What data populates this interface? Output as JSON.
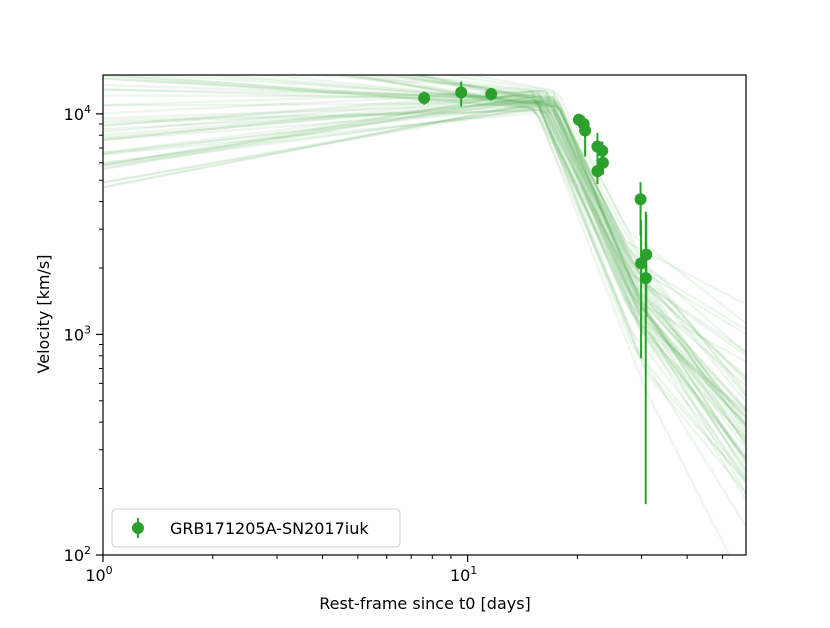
{
  "chart_data": {
    "type": "scatter",
    "xlabel": "Rest-frame since t0 [days]",
    "ylabel": "Velocity [km/s]",
    "xscale": "log",
    "yscale": "log",
    "xlim": [
      1,
      58
    ],
    "ylim": [
      100,
      15000
    ],
    "x_ticks": [
      {
        "value": 1,
        "base": "10",
        "exp": "0"
      },
      {
        "value": 10,
        "base": "10",
        "exp": "1"
      }
    ],
    "y_ticks": [
      {
        "value": 100,
        "base": "10",
        "exp": "2"
      },
      {
        "value": 1000,
        "base": "10",
        "exp": "3"
      },
      {
        "value": 10000,
        "base": "10",
        "exp": "4"
      }
    ],
    "grid": false,
    "legend": {
      "position": "lower-left"
    },
    "colors": {
      "series": "#2ca02c"
    },
    "series": [
      {
        "name": "GRB171205A-SN2017iuk",
        "marker": "circle",
        "errorbars": true,
        "points": [
          {
            "x": 7.6,
            "y": 11800,
            "ylo": 11000,
            "yhi": 12600
          },
          {
            "x": 9.6,
            "y": 12500,
            "ylo": 10800,
            "yhi": 14000
          },
          {
            "x": 11.6,
            "y": 12300,
            "ylo": 11500,
            "yhi": 13100
          },
          {
            "x": 20.2,
            "y": 9400,
            "ylo": 8800,
            "yhi": 10000
          },
          {
            "x": 20.8,
            "y": 9000,
            "ylo": 8200,
            "yhi": 9800
          },
          {
            "x": 21.0,
            "y": 8400,
            "ylo": 6400,
            "yhi": 9200
          },
          {
            "x": 22.7,
            "y": 7100,
            "ylo": 6300,
            "yhi": 8200
          },
          {
            "x": 22.7,
            "y": 5500,
            "ylo": 4800,
            "yhi": 6300
          },
          {
            "x": 23.4,
            "y": 6800,
            "ylo": 6100,
            "yhi": 7500
          },
          {
            "x": 23.5,
            "y": 6000,
            "ylo": 5300,
            "yhi": 6700
          },
          {
            "x": 29.8,
            "y": 4100,
            "ylo": 2800,
            "yhi": 4900
          },
          {
            "x": 29.9,
            "y": 2100,
            "ylo": 780,
            "yhi": 3300
          },
          {
            "x": 30.9,
            "y": 2300,
            "ylo": 1200,
            "yhi": 3500
          },
          {
            "x": 30.8,
            "y": 1800,
            "ylo": 170,
            "yhi": 3600
          }
        ]
      }
    ],
    "model_curves": {
      "description_hidden": true,
      "count": 60
    }
  }
}
